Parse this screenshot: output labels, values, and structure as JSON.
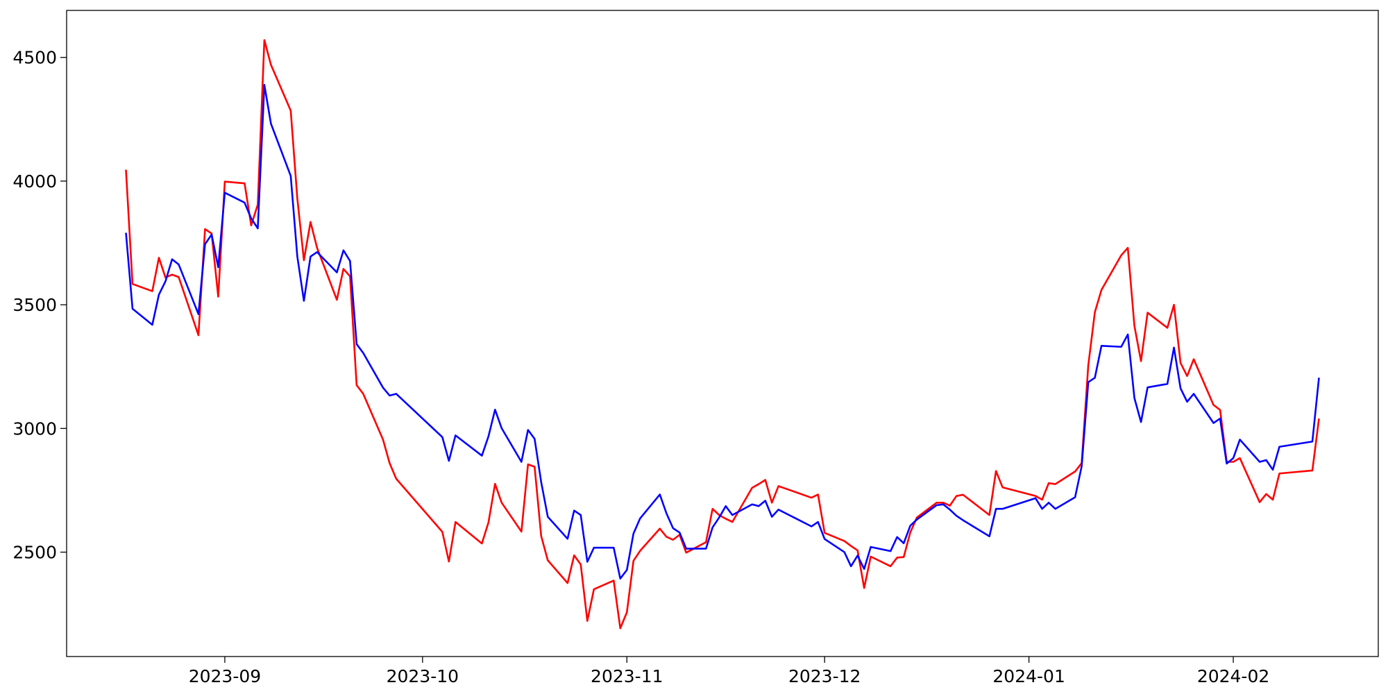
{
  "chart_data": {
    "type": "line",
    "x": [
      "2023-08-17",
      "2023-08-18",
      "2023-08-21",
      "2023-08-22",
      "2023-08-23",
      "2023-08-24",
      "2023-08-25",
      "2023-08-28",
      "2023-08-29",
      "2023-08-30",
      "2023-08-31",
      "2023-09-01",
      "2023-09-04",
      "2023-09-05",
      "2023-09-06",
      "2023-09-07",
      "2023-09-08",
      "2023-09-11",
      "2023-09-12",
      "2023-09-13",
      "2023-09-14",
      "2023-09-15",
      "2023-09-18",
      "2023-09-19",
      "2023-09-20",
      "2023-09-21",
      "2023-09-22",
      "2023-09-25",
      "2023-09-26",
      "2023-09-27",
      "2023-10-04",
      "2023-10-05",
      "2023-10-06",
      "2023-10-10",
      "2023-10-11",
      "2023-10-12",
      "2023-10-13",
      "2023-10-16",
      "2023-10-17",
      "2023-10-18",
      "2023-10-19",
      "2023-10-20",
      "2023-10-23",
      "2023-10-24",
      "2023-10-25",
      "2023-10-26",
      "2023-10-27",
      "2023-10-30",
      "2023-10-31",
      "2023-11-01",
      "2023-11-02",
      "2023-11-03",
      "2023-11-06",
      "2023-11-07",
      "2023-11-08",
      "2023-11-09",
      "2023-11-10",
      "2023-11-13",
      "2023-11-14",
      "2023-11-15",
      "2023-11-16",
      "2023-11-17",
      "2023-11-20",
      "2023-11-21",
      "2023-11-22",
      "2023-11-23",
      "2023-11-24",
      "2023-11-29",
      "2023-11-30",
      "2023-12-01",
      "2023-12-04",
      "2023-12-05",
      "2023-12-06",
      "2023-12-07",
      "2023-12-08",
      "2023-12-11",
      "2023-12-12",
      "2023-12-13",
      "2023-12-14",
      "2023-12-15",
      "2023-12-18",
      "2023-12-19",
      "2023-12-20",
      "2023-12-21",
      "2023-12-22",
      "2023-12-26",
      "2023-12-27",
      "2023-12-28",
      "2024-01-02",
      "2024-01-03",
      "2024-01-04",
      "2024-01-05",
      "2024-01-08",
      "2024-01-09",
      "2024-01-10",
      "2024-01-11",
      "2024-01-12",
      "2024-01-15",
      "2024-01-16",
      "2024-01-17",
      "2024-01-18",
      "2024-01-19",
      "2024-01-22",
      "2024-01-23",
      "2024-01-24",
      "2024-01-25",
      "2024-01-26",
      "2024-01-29",
      "2024-01-30",
      "2024-01-31",
      "2024-02-01",
      "2024-02-02",
      "2024-02-05",
      "2024-02-06",
      "2024-02-07",
      "2024-02-08",
      "2024-02-13",
      "2024-02-14"
    ],
    "series": [
      {
        "color": "#ff0000",
        "values": [
          4046,
          3584,
          3555,
          3690,
          3610,
          3622,
          3612,
          3377,
          3806,
          3788,
          3533,
          3998,
          3991,
          3821,
          3905,
          4570,
          4470,
          4285,
          3930,
          3680,
          3835,
          3730,
          3520,
          3645,
          3615,
          3175,
          3140,
          2955,
          2860,
          2797,
          2582,
          2462,
          2622,
          2535,
          2620,
          2776,
          2700,
          2583,
          2855,
          2845,
          2565,
          2467,
          2375,
          2487,
          2450,
          2222,
          2350,
          2385,
          2192,
          2257,
          2465,
          2505,
          2595,
          2562,
          2550,
          2570,
          2498,
          2540,
          2675,
          2650,
          2635,
          2622,
          2760,
          2775,
          2792,
          2700,
          2767,
          2720,
          2733,
          2578,
          2545,
          2525,
          2507,
          2355,
          2482,
          2443,
          2478,
          2480,
          2580,
          2640,
          2700,
          2700,
          2688,
          2727,
          2732,
          2650,
          2828,
          2762,
          2727,
          2712,
          2779,
          2775,
          2826,
          2860,
          3255,
          3470,
          3560,
          3700,
          3730,
          3415,
          3272,
          3468,
          3407,
          3500,
          3265,
          3212,
          3280,
          3095,
          3075,
          2865,
          2865,
          2880,
          2702,
          2735,
          2712,
          2818,
          2830,
          3040
        ]
      },
      {
        "color": "#0000ff",
        "values": [
          3791,
          3484,
          3419,
          3541,
          3595,
          3684,
          3663,
          3462,
          3745,
          3784,
          3652,
          3953,
          3913,
          3849,
          3809,
          4389,
          4232,
          4021,
          3695,
          3516,
          3695,
          3713,
          3631,
          3720,
          3677,
          3341,
          3305,
          3165,
          3133,
          3140,
          2965,
          2869,
          2972,
          2890,
          2968,
          3076,
          3001,
          2865,
          2994,
          2958,
          2783,
          2643,
          2554,
          2668,
          2650,
          2461,
          2518,
          2518,
          2393,
          2428,
          2575,
          2636,
          2733,
          2657,
          2597,
          2579,
          2514,
          2514,
          2600,
          2640,
          2686,
          2650,
          2693,
          2686,
          2708,
          2643,
          2672,
          2604,
          2622,
          2553,
          2500,
          2443,
          2486,
          2432,
          2521,
          2504,
          2561,
          2536,
          2607,
          2632,
          2690,
          2693,
          2672,
          2647,
          2629,
          2564,
          2675,
          2675,
          2718,
          2675,
          2700,
          2675,
          2722,
          2847,
          3187,
          3205,
          3334,
          3330,
          3380,
          3123,
          3026,
          3166,
          3180,
          3327,
          3162,
          3108,
          3140,
          3022,
          3040,
          2858,
          2880,
          2955,
          2865,
          2872,
          2833,
          2926,
          2947,
          3205
        ]
      }
    ],
    "xlim": [
      "2023-08-08",
      "2024-02-23"
    ],
    "xticks": [
      {
        "value": "2023-09-01",
        "label": "2023-09"
      },
      {
        "value": "2023-10-01",
        "label": "2023-10"
      },
      {
        "value": "2023-11-01",
        "label": "2023-11"
      },
      {
        "value": "2023-12-01",
        "label": "2023-12"
      },
      {
        "value": "2024-01-01",
        "label": "2024-01"
      },
      {
        "value": "2024-02-01",
        "label": "2024-02"
      }
    ],
    "ylim": [
      2078,
      4690
    ],
    "yticks": [
      2500,
      3000,
      3500,
      4000,
      4500
    ],
    "grid": false
  }
}
